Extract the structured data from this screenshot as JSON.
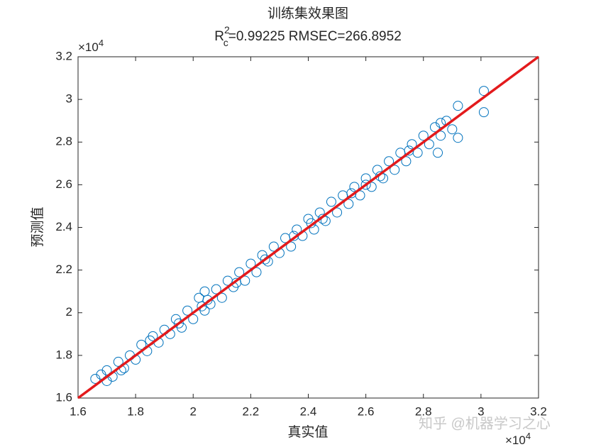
{
  "chart_data": {
    "type": "scatter",
    "title": "训练集效果图",
    "subtitle": {
      "base": "R",
      "sub": "c",
      "sup": "2",
      "rest": "=0.99225  RMSEC=266.8952"
    },
    "x_label": "真实值",
    "y_label": "预测值",
    "x_exponent": {
      "base": "×10",
      "power": "4"
    },
    "y_exponent": {
      "base": "×10",
      "power": "4"
    },
    "watermark": "知乎 @机器学习之心",
    "xlim": [
      1.6,
      3.2
    ],
    "ylim": [
      1.6,
      3.2
    ],
    "xticks": [
      1.6,
      1.8,
      2,
      2.2,
      2.4,
      2.6,
      2.8,
      3,
      3.2
    ],
    "yticks": [
      1.6,
      1.8,
      2,
      2.2,
      2.4,
      2.6,
      2.8,
      3,
      3.2
    ],
    "grid": false,
    "series": [
      {
        "color": "#0072BD",
        "x": [
          1.66,
          1.68,
          1.7,
          1.7,
          1.72,
          1.74,
          1.76,
          1.78,
          1.8,
          1.82,
          1.84,
          1.86,
          1.88,
          1.9,
          1.92,
          1.94,
          1.96,
          1.98,
          2.0,
          2.02,
          2.04,
          2.04,
          2.06,
          2.08,
          2.1,
          2.12,
          2.14,
          2.16,
          2.18,
          2.2,
          2.22,
          2.24,
          2.26,
          2.28,
          2.3,
          2.32,
          2.34,
          2.36,
          2.38,
          2.4,
          2.42,
          2.44,
          2.46,
          2.48,
          2.5,
          2.52,
          2.54,
          2.56,
          2.58,
          2.6,
          2.62,
          2.64,
          2.66,
          2.68,
          2.7,
          2.72,
          2.74,
          2.76,
          2.78,
          2.8,
          2.82,
          2.84,
          2.86,
          2.88,
          2.9,
          2.92,
          2.92,
          3.01,
          3.01,
          1.75,
          1.85,
          1.95,
          2.05,
          2.15,
          2.25,
          2.35,
          2.45,
          2.55,
          2.65,
          2.75,
          2.85,
          2.86,
          2.03,
          2.41,
          2.6
        ],
        "values": [
          1.69,
          1.71,
          1.68,
          1.73,
          1.7,
          1.77,
          1.74,
          1.8,
          1.78,
          1.85,
          1.82,
          1.89,
          1.86,
          1.92,
          1.9,
          1.97,
          1.93,
          2.01,
          1.97,
          2.07,
          2.1,
          2.01,
          2.04,
          2.11,
          2.07,
          2.15,
          2.12,
          2.19,
          2.15,
          2.23,
          2.19,
          2.27,
          2.24,
          2.31,
          2.28,
          2.35,
          2.31,
          2.39,
          2.36,
          2.44,
          2.39,
          2.47,
          2.43,
          2.52,
          2.47,
          2.55,
          2.51,
          2.59,
          2.55,
          2.63,
          2.59,
          2.67,
          2.63,
          2.71,
          2.67,
          2.75,
          2.71,
          2.79,
          2.75,
          2.83,
          2.79,
          2.87,
          2.83,
          2.9,
          2.86,
          2.97,
          2.82,
          3.04,
          2.94,
          1.73,
          1.87,
          1.95,
          2.06,
          2.14,
          2.25,
          2.36,
          2.44,
          2.56,
          2.64,
          2.76,
          2.75,
          2.89,
          2.03,
          2.42,
          2.6
        ]
      }
    ],
    "fit_line": {
      "x": [
        1.6,
        3.2
      ],
      "y": [
        1.6,
        3.2
      ],
      "color": "#E31A1C"
    }
  }
}
